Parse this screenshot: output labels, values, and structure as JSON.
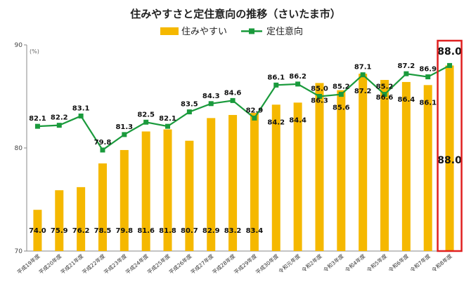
{
  "chart_data": {
    "type": "bar",
    "title": "住みやすさと定住意向の推移（さいたま市）",
    "unit_label": "(%)",
    "categories": [
      "平成19年度",
      "平成20年度",
      "平成21年度",
      "平成22年度",
      "平成23年度",
      "平成24年度",
      "平成25年度",
      "平成26年度",
      "平成27年度",
      "平成28年度",
      "平成29年度",
      "平成30年度",
      "令和元年度",
      "令和2年度",
      "令和3年度",
      "令和4年度",
      "令和5年度",
      "令和6年度",
      "令和7年度",
      "令和8年度"
    ],
    "ylim": [
      70,
      90
    ],
    "yticks": [
      70,
      80,
      90
    ],
    "grid": false,
    "legend_position": "top",
    "highlight_index": 19,
    "highlight_color": "#e02020",
    "series": [
      {
        "name": "住みやすい",
        "type": "bar",
        "color": "#f5b800",
        "values": [
          74.0,
          75.9,
          76.2,
          78.5,
          79.8,
          81.6,
          81.8,
          80.7,
          82.9,
          83.2,
          83.4,
          84.2,
          84.4,
          86.3,
          85.6,
          87.2,
          86.6,
          86.4,
          86.1,
          88.0
        ],
        "labels": [
          "74.0",
          "75.9",
          "76.2",
          "78.5",
          "79.8",
          "81.6",
          "81.8",
          "80.7",
          "82.9",
          "83.2",
          "83.4",
          "84.2",
          "84.4",
          "86.3",
          "85.6",
          "87.2",
          "86.6",
          "86.4",
          "86.1",
          "88.0"
        ]
      },
      {
        "name": "定住意向",
        "type": "line",
        "color": "#1a9a3c",
        "values": [
          82.1,
          82.2,
          83.1,
          79.8,
          81.3,
          82.5,
          82.1,
          83.5,
          84.3,
          84.6,
          82.9,
          86.1,
          86.2,
          85.0,
          85.2,
          87.1,
          85.2,
          87.2,
          86.9,
          88.0
        ],
        "labels": [
          "82.1",
          "82.2",
          "83.1",
          "79.8",
          "81.3",
          "82.5",
          "82.1",
          "83.5",
          "84.3",
          "84.6",
          "82.9",
          "86.1",
          "86.2",
          "85.0",
          "85.2",
          "87.1",
          "85.2",
          "87.2",
          "86.9",
          "88.0"
        ]
      }
    ]
  }
}
